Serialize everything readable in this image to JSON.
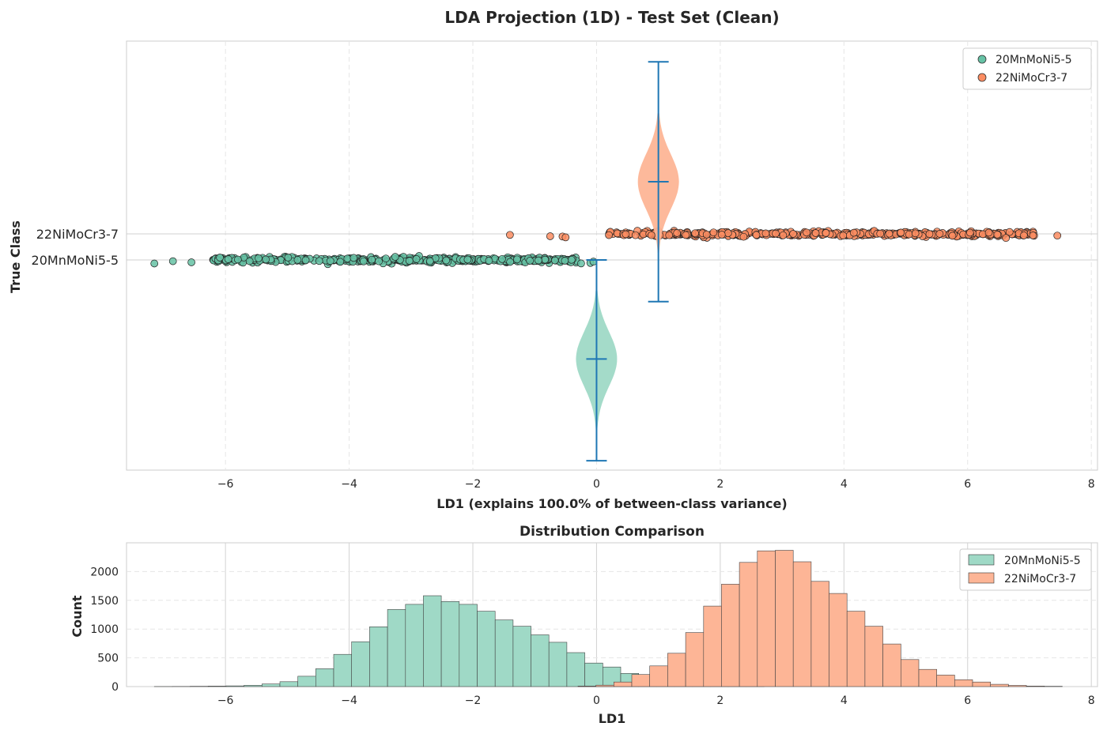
{
  "colors": {
    "class_a": "#66c2a5",
    "class_b": "#fc8d62",
    "hist_a": "#9fd9c6",
    "hist_b": "#fdb596",
    "violin_line": "#1f77b4",
    "grid": "#e6e6e6",
    "frame": "#cccccc"
  },
  "chart_data": [
    {
      "type": "scatter",
      "title": "LDA Projection (1D) - Test Set (Clean)",
      "xlabel": "LD1 (explains 100.0% of between-class variance)",
      "ylabel": "True Class",
      "xlim": [
        -7.6,
        8.1
      ],
      "x_ticks": [
        -6,
        -4,
        -2,
        0,
        2,
        4,
        6,
        8
      ],
      "x_tick_labels": [
        "−6",
        "−4",
        "−2",
        "0",
        "2",
        "4",
        "6",
        "8"
      ],
      "y_categories": [
        "20MnMoNi5-5",
        "22NiMoCr3-7"
      ],
      "grid": true,
      "legend": {
        "position": "top-right",
        "entries": [
          "20MnMoNi5-5",
          "22NiMoCr3-7"
        ]
      },
      "series": [
        {
          "name": "20MnMoNi5-5",
          "class_index": 0,
          "x_range": [
            -7.15,
            0.0
          ],
          "core_range": [
            -6.2,
            -0.3
          ],
          "outliers": [
            -7.15,
            -6.85,
            -6.55,
            -0.25,
            -0.1,
            -0.05
          ]
        },
        {
          "name": "22NiMoCr3-7",
          "class_index": 1,
          "x_range": [
            -1.4,
            7.45
          ],
          "core_range": [
            0.2,
            7.1
          ],
          "outliers": [
            -1.4,
            -0.75,
            -0.55,
            -0.5,
            0.2,
            7.45
          ]
        }
      ],
      "violins": [
        {
          "position_x": 0,
          "center_class": -3.8,
          "min_class": -7.7,
          "max_class": 0.0,
          "mean_class": -3.8
        },
        {
          "position_x": 1,
          "center_class": 3.0,
          "min_class": -1.6,
          "max_class": 7.6,
          "mean_class": 3.0
        }
      ]
    },
    {
      "type": "bar",
      "title": "Distribution Comparison",
      "xlabel": "LD1",
      "ylabel": "Count",
      "xlim": [
        -7.6,
        8.1
      ],
      "ylim": [
        0,
        2500
      ],
      "x_ticks": [
        -6,
        -4,
        -2,
        0,
        2,
        4,
        6,
        8
      ],
      "x_tick_labels": [
        "−6",
        "−4",
        "−2",
        "0",
        "2",
        "4",
        "6",
        "8"
      ],
      "y_ticks": [
        0,
        500,
        1000,
        1500,
        2000
      ],
      "bin_width": 0.29,
      "grid": true,
      "legend": {
        "position": "top-right",
        "entries": [
          "20MnMoNi5-5",
          "22NiMoCr3-7"
        ]
      },
      "series": [
        {
          "name": "20MnMoNi5-5",
          "bin_start": -7.15,
          "values": [
            2,
            3,
            5,
            8,
            12,
            22,
            45,
            85,
            180,
            310,
            560,
            780,
            1040,
            1340,
            1430,
            1580,
            1480,
            1430,
            1310,
            1160,
            1050,
            900,
            770,
            590,
            410,
            340,
            230,
            170,
            110,
            60,
            30,
            12,
            5,
            2
          ]
        },
        {
          "name": "22NiMoCr3-7",
          "bin_start": -0.3,
          "values": [
            10,
            25,
            80,
            210,
            360,
            580,
            940,
            1400,
            1780,
            2160,
            2360,
            2370,
            2170,
            1830,
            1620,
            1310,
            1050,
            740,
            470,
            300,
            200,
            120,
            80,
            40,
            20,
            10,
            5
          ]
        }
      ]
    }
  ]
}
